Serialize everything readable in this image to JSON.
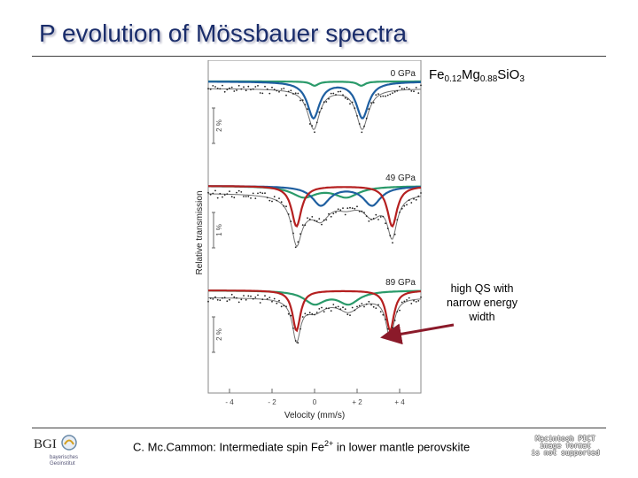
{
  "slide": {
    "title": "P evolution of Mössbauer spectra",
    "formula": {
      "a": "Fe",
      "b": "0.12",
      "c": "Mg",
      "d": "0.88",
      "e": "SiO",
      "f": "3"
    },
    "note": "high QS with narrow energy width",
    "caption": {
      "pre": "C. Mc.Cammon: Intermediate spin Fe",
      "sup": "2+",
      "post": " in lower mantle perovskite"
    },
    "logo": {
      "name": "BGI",
      "sub1": "bayerisches",
      "sub2": "Geoinstitut"
    },
    "pict_notice": [
      "Macintosh PICT",
      "image format",
      "is not supported"
    ]
  },
  "chart_data": {
    "type": "line",
    "xlabel": "Velocity (mm/s)",
    "ylabel": "Relative transmission",
    "xlim": [
      -5,
      5
    ],
    "x_ticks": [
      -4,
      -2,
      0,
      2,
      4
    ],
    "x_tick_labels": [
      "- 4",
      "- 2",
      "0",
      "+ 2",
      "+ 4"
    ],
    "colors": {
      "envelope": "#707070",
      "low_qs": "#2a9a6a",
      "mid_qs": "#1f5fa0",
      "high_qs": "#b52020",
      "arrow": "#8b1a2a"
    },
    "panels": [
      {
        "label": "0 GPa",
        "scale_label": "2 %",
        "components": [
          {
            "name": "doublet-1",
            "color": "low_qs",
            "center": 1.1,
            "split": 2.2,
            "width": 0.45,
            "depth": 0.1
          },
          {
            "name": "doublet-2",
            "color": "mid_qs",
            "center": 1.1,
            "split": 2.3,
            "width": 0.7,
            "depth": 0.85
          }
        ]
      },
      {
        "label": "49 GPa",
        "scale_label": "1 %",
        "components": [
          {
            "name": "doublet-1",
            "color": "low_qs",
            "center": 0.5,
            "split": 2.0,
            "width": 1.4,
            "depth": 0.25
          },
          {
            "name": "doublet-2",
            "color": "mid_qs",
            "center": 1.5,
            "split": 2.4,
            "width": 1.0,
            "depth": 0.45
          },
          {
            "name": "doublet-3",
            "color": "high_qs",
            "center": 1.4,
            "split": 4.5,
            "width": 0.55,
            "depth": 0.95
          }
        ]
      },
      {
        "label": "89 GPa",
        "scale_label": "2 %",
        "components": [
          {
            "name": "doublet-1",
            "color": "low_qs",
            "center": 0.8,
            "split": 1.6,
            "width": 1.2,
            "depth": 0.3
          },
          {
            "name": "doublet-2",
            "color": "high_qs",
            "center": 1.35,
            "split": 4.4,
            "width": 0.45,
            "depth": 0.95
          }
        ]
      }
    ]
  }
}
